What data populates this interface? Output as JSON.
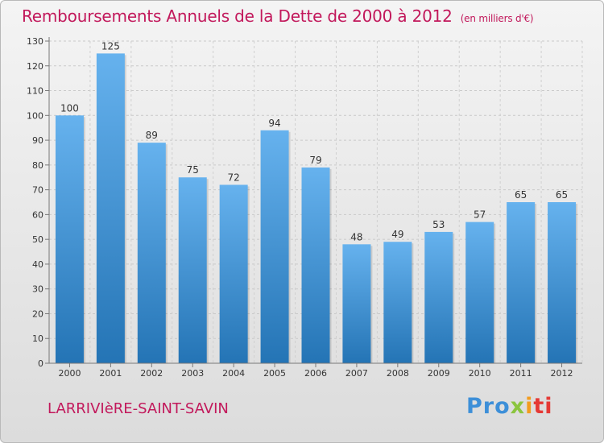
{
  "header": {
    "title": "Remboursements Annuels de la Dette de 2000 à 2012",
    "unit": "(en milliers d'€)"
  },
  "footer": {
    "commune": "LARRIVIèRE-SAINT-SAVIN",
    "logo_text": "Proxiti",
    "logo_letters": [
      "Pro",
      "x",
      "i",
      "ti"
    ]
  },
  "colors": {
    "title": "#c2185b",
    "bar_top": "#66b2ee",
    "bar_bottom": "#2474b5"
  },
  "chart_data": {
    "type": "bar",
    "title": "Remboursements Annuels de la Dette de 2000 à 2012",
    "categories": [
      "2000",
      "2001",
      "2002",
      "2003",
      "2004",
      "2005",
      "2006",
      "2007",
      "2008",
      "2009",
      "2010",
      "2011",
      "2012"
    ],
    "values": [
      100,
      125,
      89,
      75,
      72,
      94,
      79,
      48,
      49,
      53,
      57,
      65,
      65
    ],
    "xlabel": "",
    "ylabel": "",
    "ylim": [
      0,
      130
    ],
    "yticks": [
      0,
      10,
      20,
      30,
      40,
      50,
      60,
      70,
      80,
      90,
      100,
      110,
      120,
      130
    ],
    "grid": true,
    "data_labels": true
  }
}
